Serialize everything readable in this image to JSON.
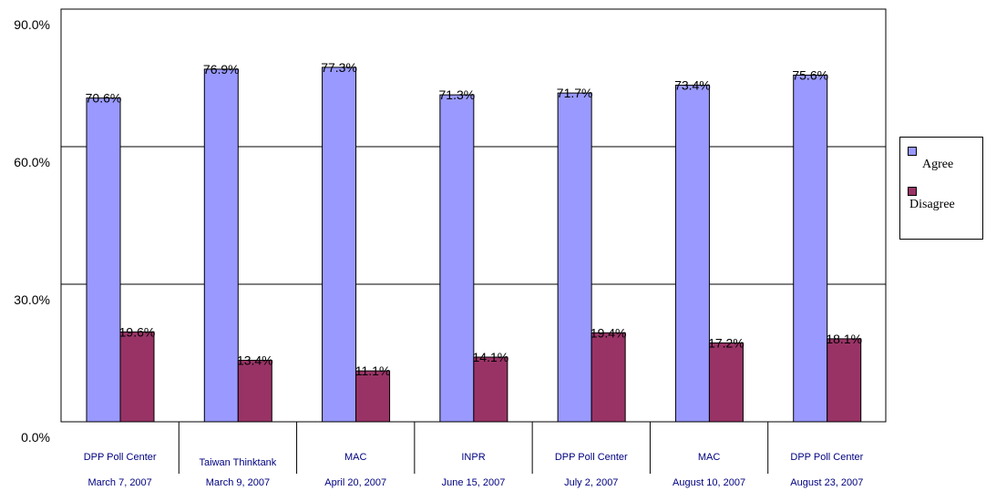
{
  "chart_data": {
    "type": "bar",
    "categories": [
      {
        "pollster": "DPP Poll Center",
        "date": "March 7, 2007"
      },
      {
        "pollster": "Taiwan Thinktank",
        "date": "March 9, 2007"
      },
      {
        "pollster": "MAC",
        "date": "April 20, 2007"
      },
      {
        "pollster": "INPR",
        "date": "June 15, 2007"
      },
      {
        "pollster": "DPP Poll Center",
        "date": "July 2, 2007"
      },
      {
        "pollster": "MAC",
        "date": "August 10, 2007"
      },
      {
        "pollster": "DPP Poll Center",
        "date": "August 23, 2007"
      }
    ],
    "series": [
      {
        "name": "Agree",
        "color": "#9999ff",
        "values": [
          70.6,
          76.9,
          77.3,
          71.3,
          71.7,
          73.4,
          75.6
        ],
        "labels": [
          "70.6%",
          "76.9%",
          "77.3%",
          "71.3%",
          "71.7%",
          "73.4%",
          "75.6%"
        ]
      },
      {
        "name": "Disagree",
        "color": "#993366",
        "values": [
          19.6,
          13.4,
          11.1,
          14.1,
          19.4,
          17.2,
          18.1
        ],
        "labels": [
          "19.6%",
          "13.4%",
          "11.1%",
          "14.1%",
          "19.4%",
          "17.2%",
          "18.1%"
        ]
      }
    ],
    "yticks": [
      "0.0%",
      "30.0%",
      "60.0%",
      "90.0%"
    ],
    "ytick_values": [
      0,
      30,
      60,
      90
    ],
    "ylim": [
      0,
      90
    ],
    "grid": true,
    "legend": "right",
    "title": "",
    "xlabel": "",
    "ylabel": ""
  }
}
